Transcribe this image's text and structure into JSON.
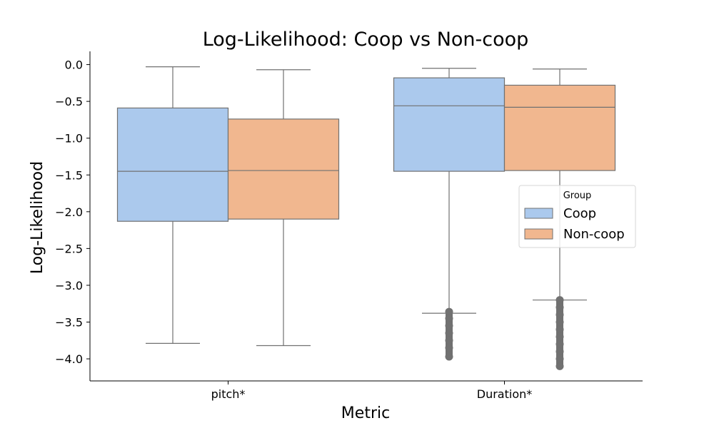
{
  "chart_data": {
    "type": "box",
    "title": "Log-Likelihood: Coop vs Non-coop",
    "xlabel": "Metric",
    "ylabel": "Log-Likelihood",
    "categories": [
      "pitch*",
      "Duration*"
    ],
    "ylim": [
      -4.3,
      0.18
    ],
    "yticks": [
      0.0,
      -0.5,
      -1.0,
      -1.5,
      -2.0,
      -2.5,
      -3.0,
      -3.5,
      -4.0
    ],
    "ytick_labels": [
      "0.0",
      "−0.5",
      "−1.0",
      "−1.5",
      "−2.0",
      "−2.5",
      "−3.0",
      "−3.5",
      "−4.0"
    ],
    "grid": false,
    "legend": {
      "title": "Group",
      "placement": "center-right"
    },
    "series": [
      {
        "name": "Coop",
        "color": "#abc9ed",
        "boxes": [
          {
            "whisker_low": -3.79,
            "q1": -2.13,
            "median": -1.45,
            "q3": -0.59,
            "whisker_high": -0.03,
            "outliers": []
          },
          {
            "whisker_low": -3.38,
            "q1": -1.45,
            "median": -0.56,
            "q3": -0.18,
            "whisker_high": -0.05,
            "outliers": [
              -3.36,
              -3.45,
              -3.55,
              -3.65,
              -3.75,
              -3.85,
              -3.97
            ]
          }
        ]
      },
      {
        "name": "Non-coop",
        "color": "#f1b78f",
        "boxes": [
          {
            "whisker_low": -3.82,
            "q1": -2.1,
            "median": -1.44,
            "q3": -0.74,
            "whisker_high": -0.07,
            "outliers": []
          },
          {
            "whisker_low": -3.2,
            "q1": -1.44,
            "median": -0.58,
            "q3": -0.28,
            "whisker_high": -0.06,
            "outliers": [
              -3.2,
              -3.3,
              -3.4,
              -3.5,
              -3.6,
              -3.7,
              -3.8,
              -3.9,
              -4.0,
              -4.1
            ]
          }
        ]
      }
    ],
    "line_color": "#717171"
  }
}
